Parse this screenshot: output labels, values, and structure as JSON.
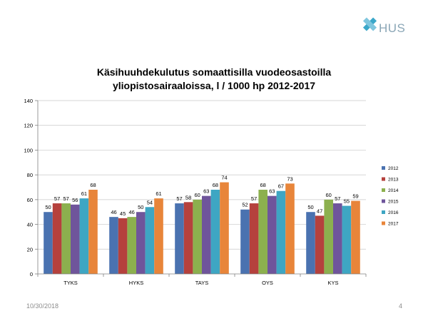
{
  "brand": {
    "logo_text": "HUS",
    "accent": "#3aa7c9"
  },
  "slide": {
    "date": "10/30/2018",
    "page_number": "4"
  },
  "chart_data": {
    "type": "bar",
    "title_line1": "Käsihuuhdekulutus somaattisilla vuodeosastoilla",
    "title_line2": "yliopistosairaaloissa, l / 1000 hp 2012-2017",
    "categories": [
      "TYKS",
      "HYKS",
      "TAYS",
      "OYS",
      "KYS"
    ],
    "series": [
      {
        "name": "2012",
        "color": "#4a72b0",
        "values": [
          50,
          46,
          57,
          52,
          50
        ]
      },
      {
        "name": "2013",
        "color": "#b5413d",
        "values": [
          57,
          45,
          58,
          57,
          47
        ]
      },
      {
        "name": "2014",
        "color": "#8cb04e",
        "values": [
          57,
          46,
          60,
          68,
          60
        ]
      },
      {
        "name": "2015",
        "color": "#6f559b",
        "values": [
          56,
          50,
          63,
          63,
          57
        ]
      },
      {
        "name": "2016",
        "color": "#3ea6c3",
        "values": [
          61,
          54,
          68,
          67,
          55
        ]
      },
      {
        "name": "2017",
        "color": "#e8853a",
        "values": [
          68,
          61,
          74,
          73,
          59
        ]
      }
    ],
    "ylim": [
      0,
      140
    ],
    "yticks": [
      0,
      20,
      40,
      60,
      80,
      100,
      120,
      140
    ],
    "grid": true,
    "legend": "right"
  }
}
